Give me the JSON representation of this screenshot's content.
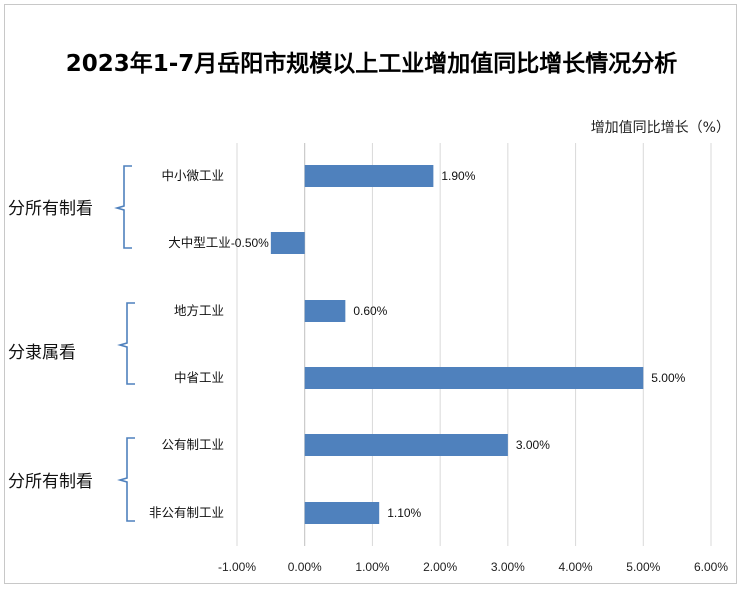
{
  "chart_data": {
    "type": "bar",
    "orientation": "horizontal",
    "title": "2023年1-7月岳阳市规模以上工业增加值同比增长情况分析",
    "unit_label": "增加值同比增长（%）",
    "xlim": [
      -1,
      6
    ],
    "x_ticks": [
      -1,
      0,
      1,
      2,
      3,
      4,
      5,
      6
    ],
    "x_tick_labels": [
      "-1.00%",
      "0.00%",
      "1.00%",
      "2.00%",
      "3.00%",
      "4.00%",
      "5.00%",
      "6.00%"
    ],
    "grid": true,
    "groups": [
      {
        "label": "分所有制看",
        "items": [
          {
            "category": "中小微工业",
            "value": 1.9,
            "label": "1.90%"
          },
          {
            "category": "大中型工业",
            "value": -0.5,
            "label": "-0.50%"
          }
        ]
      },
      {
        "label": "分隶属看",
        "items": [
          {
            "category": "地方工业",
            "value": 0.6,
            "label": "0.60%"
          },
          {
            "category": "中省工业",
            "value": 5.0,
            "label": "5.00%"
          }
        ]
      },
      {
        "label": "分所有制看",
        "items": [
          {
            "category": "公有制工业",
            "value": 3.0,
            "label": "3.00%"
          },
          {
            "category": "非公有制工业",
            "value": 1.1,
            "label": "1.10%"
          }
        ]
      }
    ],
    "bar_color": "#4f81bd"
  }
}
